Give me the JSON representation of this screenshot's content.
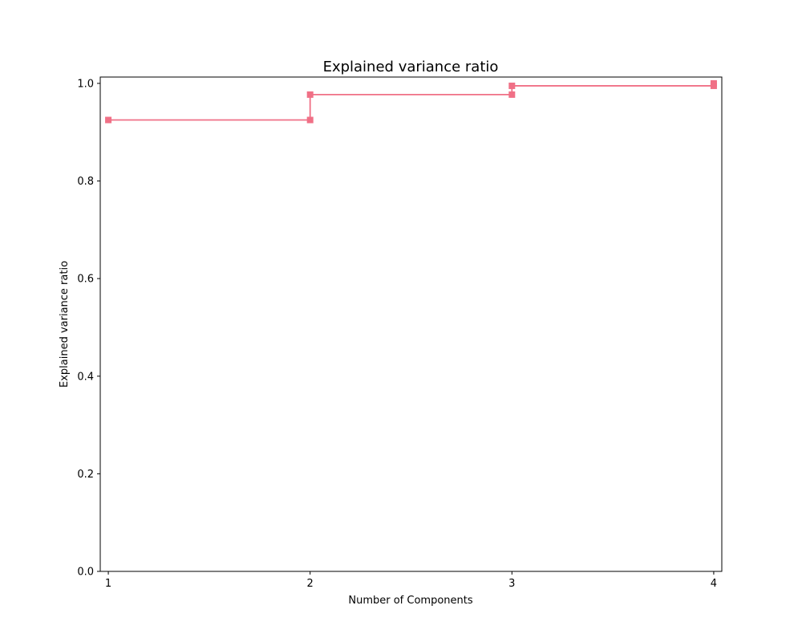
{
  "chart_data": {
    "type": "line",
    "title": "Explained variance ratio",
    "xlabel": "Number of Components",
    "ylabel": "Explained variance ratio",
    "x_ticks": [
      "1",
      "2",
      "3",
      "4"
    ],
    "y_ticks": [
      "0.0",
      "0.2",
      "0.4",
      "0.6",
      "0.8",
      "1.0"
    ],
    "xlim": [
      0.96,
      4.04
    ],
    "ylim": [
      0.0,
      1.013
    ],
    "step": "post",
    "marker": "square",
    "grid": false,
    "series": [
      {
        "color": "#f07086",
        "x": [
          1,
          2,
          3,
          4
        ],
        "y": [
          0.925,
          0.977,
          0.995,
          1.0
        ]
      }
    ],
    "markers_plotted": [
      {
        "x": 1,
        "y": 0.925
      },
      {
        "x": 2,
        "y": 0.925
      },
      {
        "x": 2,
        "y": 0.977
      },
      {
        "x": 3,
        "y": 0.977
      },
      {
        "x": 3,
        "y": 0.995
      },
      {
        "x": 4,
        "y": 0.995
      },
      {
        "x": 4,
        "y": 1.0
      }
    ]
  }
}
